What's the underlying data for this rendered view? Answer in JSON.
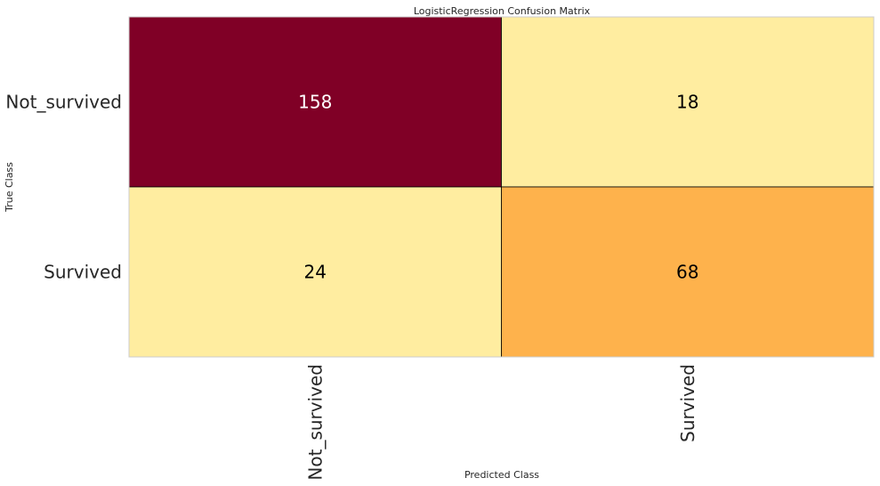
{
  "chart_data": {
    "type": "heatmap",
    "title": "LogisticRegression Confusion Matrix",
    "xlabel": "Predicted Class",
    "ylabel": "True Class",
    "x_categories": [
      "Not_survived",
      "Survived"
    ],
    "y_categories": [
      "Not_survived",
      "Survived"
    ],
    "values": [
      [
        158,
        18
      ],
      [
        24,
        68
      ]
    ],
    "cell_colors": [
      [
        "#800026",
        "#ffeda0"
      ],
      [
        "#ffeda0",
        "#feb24c"
      ]
    ],
    "text_colors": [
      [
        "#ffffff",
        "#000000"
      ],
      [
        "#000000",
        "#000000"
      ]
    ],
    "grid": false,
    "legend": "none"
  }
}
